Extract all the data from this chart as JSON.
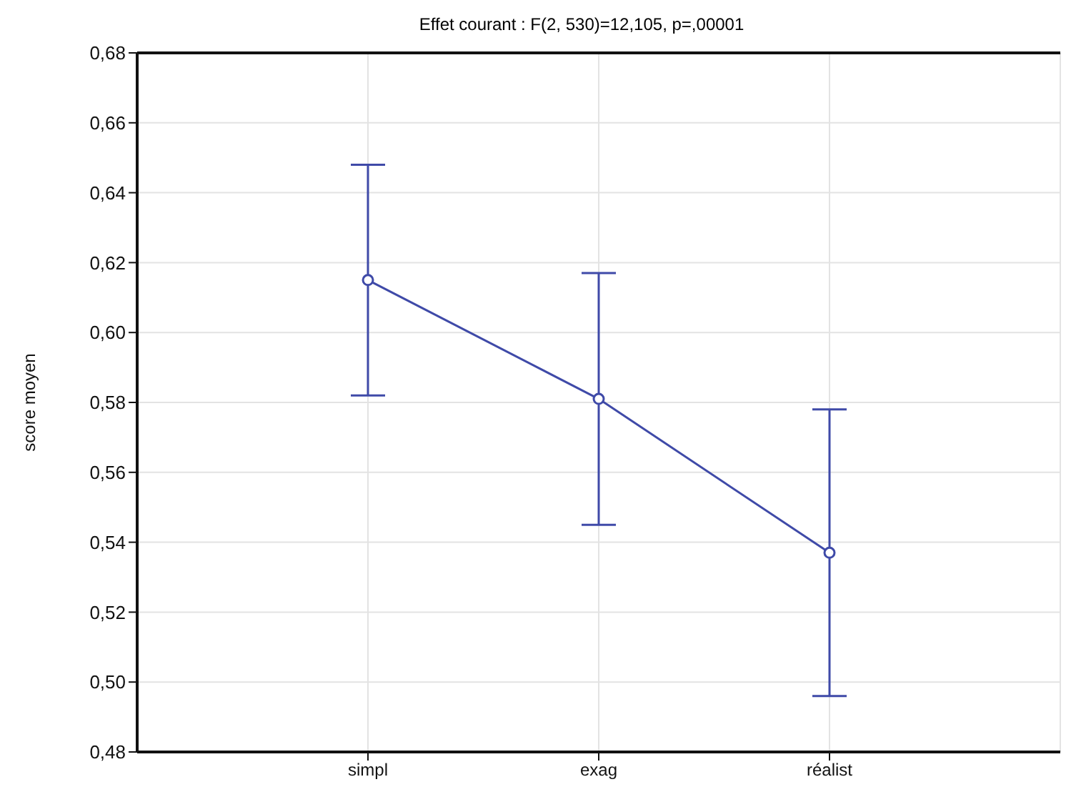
{
  "chart_data": {
    "type": "line",
    "title": "Effet courant : F(2, 530)=12,105, p=,00001",
    "ylabel": "score moyen",
    "categories": [
      "simpl",
      "exag",
      "réalist"
    ],
    "series": [
      {
        "color": "#3f4aa8",
        "values": [
          0.615,
          0.581,
          0.537
        ],
        "errors": [
          0.033,
          0.036,
          0.041
        ]
      }
    ],
    "ylim": [
      0.48,
      0.68
    ],
    "yticks": [
      {
        "value": 0.48,
        "label": "0,48"
      },
      {
        "value": 0.5,
        "label": "0,50"
      },
      {
        "value": 0.52,
        "label": "0,52"
      },
      {
        "value": 0.54,
        "label": "0,54"
      },
      {
        "value": 0.56,
        "label": "0,56"
      },
      {
        "value": 0.58,
        "label": "0,58"
      },
      {
        "value": 0.6,
        "label": "0,60"
      },
      {
        "value": 0.62,
        "label": "0,62"
      },
      {
        "value": 0.64,
        "label": "0,64"
      },
      {
        "value": 0.66,
        "label": "0,66"
      },
      {
        "value": 0.68,
        "label": "0,68"
      }
    ],
    "grid": true,
    "marker": "circle",
    "line_style": "solid"
  }
}
